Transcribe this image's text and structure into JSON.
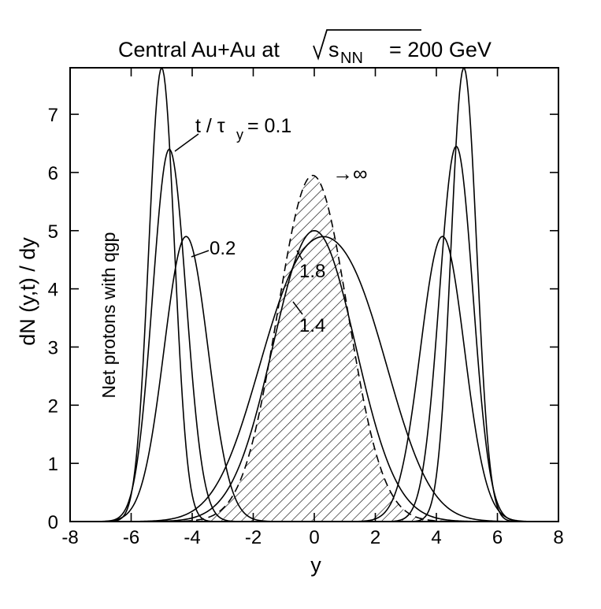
{
  "chart_data": {
    "type": "line",
    "title": {
      "prefix": "Central Au+Au at",
      "sqrt_base": "s",
      "sqrt_sub": "NN",
      "suffix": "= 200 GeV"
    },
    "xlabel": "y",
    "ylabel": "dN (y,t) / dy",
    "panel_label": "Net protons with qgp",
    "xlim": [
      -8,
      8
    ],
    "ylim": [
      0,
      7.8
    ],
    "xticks": [
      -8,
      -6,
      -4,
      -2,
      0,
      2,
      4,
      6,
      8
    ],
    "yticks": [
      0,
      1,
      2,
      3,
      4,
      5,
      6,
      7
    ],
    "grid": false,
    "annotations": {
      "t_prefix": "t / τ",
      "t_sub": "y",
      "t_value": "= 0.1",
      "label_02": "0.2",
      "label_18": "1.8",
      "label_14": "1.4",
      "label_inf": "→∞"
    },
    "series": [
      {
        "id": "t01",
        "style": "solid",
        "peaks": [
          {
            "mu": -5.0,
            "sigma": 0.42,
            "amp": 7.8
          },
          {
            "mu": 4.9,
            "sigma": 0.42,
            "amp": 7.8
          }
        ]
      },
      {
        "id": "t02",
        "style": "solid",
        "peaks": [
          {
            "mu": -4.75,
            "sigma": 0.55,
            "amp": 6.4
          },
          {
            "mu": 4.65,
            "sigma": 0.55,
            "amp": 6.45
          }
        ]
      },
      {
        "id": "t05",
        "style": "solid",
        "peaks": [
          {
            "mu": -4.2,
            "sigma": 0.72,
            "amp": 4.9
          },
          {
            "mu": 4.2,
            "sigma": 0.72,
            "amp": 4.9
          }
        ]
      },
      {
        "id": "t14",
        "style": "solid",
        "peaks": [
          {
            "mu": -0.7,
            "sigma": 1.35,
            "amp": 3.5
          },
          {
            "mu": 1.4,
            "sigma": 1.3,
            "amp": 3.2
          }
        ]
      },
      {
        "id": "t18",
        "style": "solid",
        "peaks": [
          {
            "mu": 0.0,
            "sigma": 1.35,
            "amp": 5.0
          }
        ]
      },
      {
        "id": "tinf",
        "style": "dashed",
        "peaks": [
          {
            "mu": -0.05,
            "sigma": 1.15,
            "amp": 5.95
          }
        ]
      }
    ]
  }
}
